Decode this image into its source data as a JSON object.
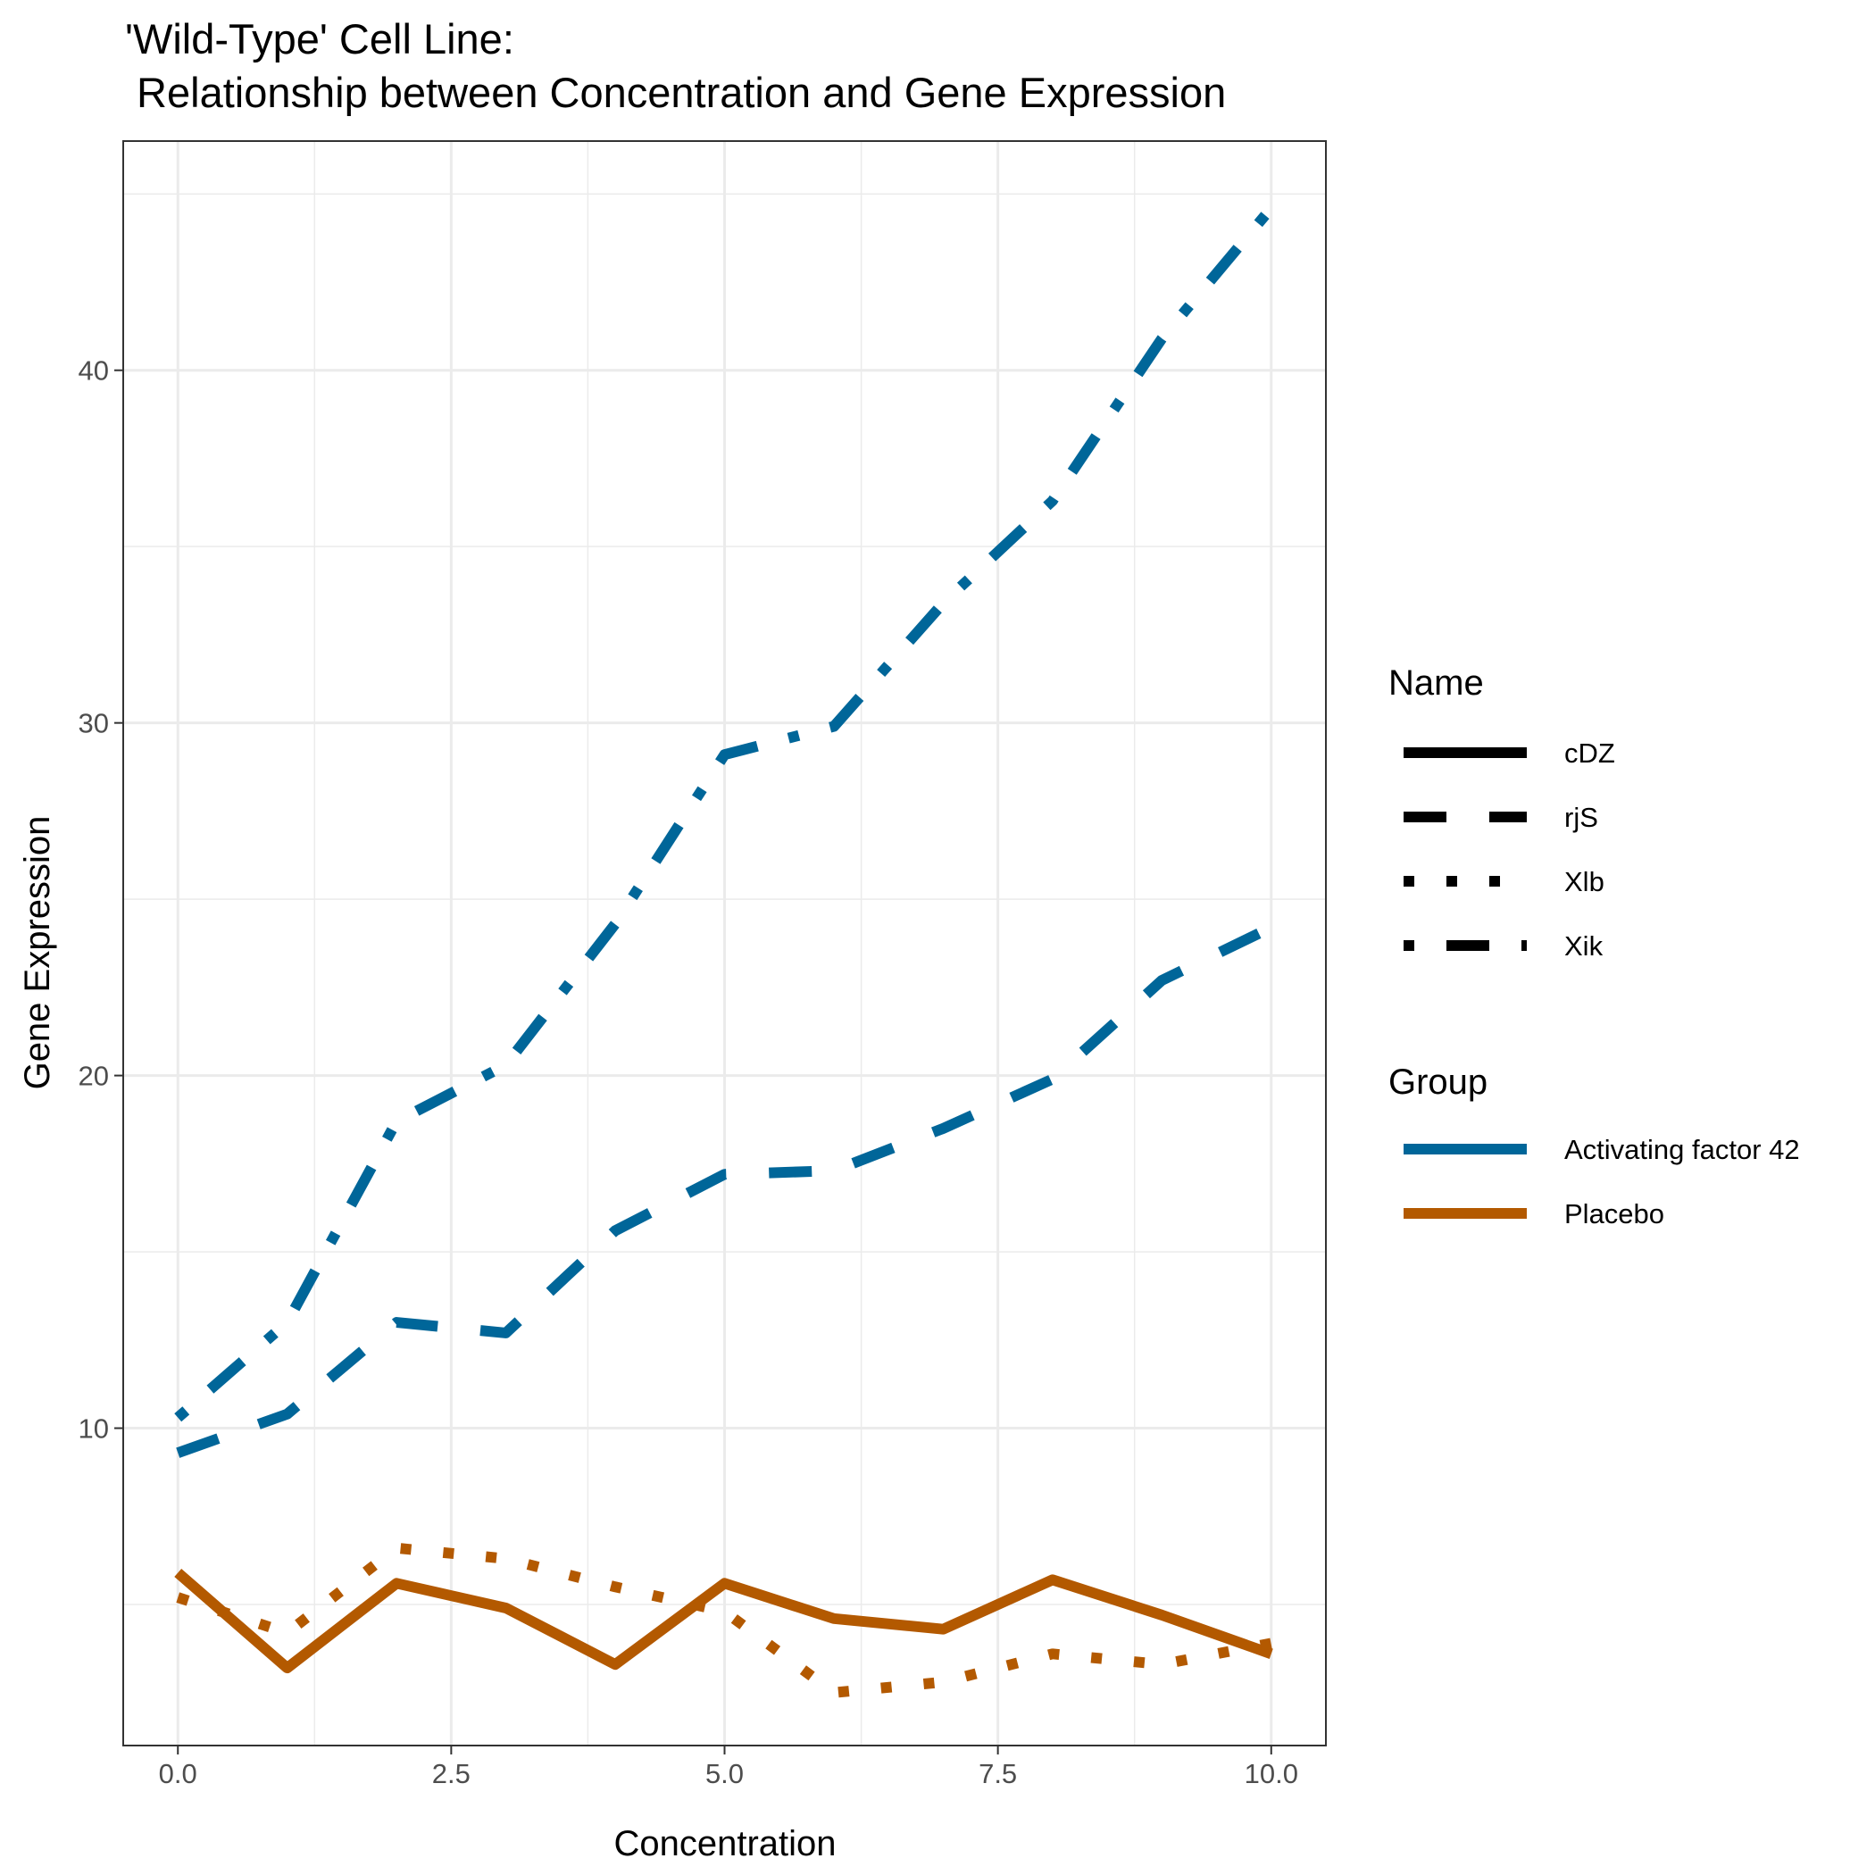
{
  "chart_data": {
    "type": "line",
    "title_line1": "'Wild-Type' Cell Line:",
    "title_line2": " Relationship between Concentration and Gene Expression",
    "xlabel": "Concentration",
    "ylabel": "Gene Expression",
    "xlim": [
      -0.5,
      10.5
    ],
    "ylim": [
      1.0,
      46.5
    ],
    "x_ticks": [
      "0.0",
      "2.5",
      "5.0",
      "7.5",
      "10.0"
    ],
    "y_ticks": [
      "10",
      "20",
      "30",
      "40"
    ],
    "x": [
      0,
      1,
      2,
      3,
      4,
      5,
      6,
      7,
      8,
      9,
      10
    ],
    "grid": true,
    "legend_position": "right",
    "legend": {
      "name_title": "Name",
      "names": [
        {
          "label": "cDZ",
          "linetype": "solid"
        },
        {
          "label": "rjS",
          "linetype": "dashed"
        },
        {
          "label": "Xlb",
          "linetype": "dotted"
        },
        {
          "label": "Xik",
          "linetype": "dotdash"
        }
      ],
      "group_title": "Group",
      "groups": [
        {
          "label": "Activating factor 42",
          "color": "#006699"
        },
        {
          "label": "Placebo",
          "color": "#b35900"
        }
      ]
    },
    "series": [
      {
        "name": "Xik",
        "group": "Activating factor 42",
        "linetype": "dotdash",
        "color": "#006699",
        "values": [
          10.3,
          13.0,
          18.7,
          20.3,
          24.3,
          29.1,
          29.9,
          33.4,
          36.3,
          40.9,
          44.6
        ]
      },
      {
        "name": "rjS",
        "group": "Activating factor 42",
        "linetype": "dashed",
        "color": "#006699",
        "values": [
          9.3,
          10.4,
          13.0,
          12.7,
          15.6,
          17.2,
          17.3,
          18.5,
          19.9,
          22.7,
          24.2
        ]
      },
      {
        "name": "cDZ",
        "group": "Placebo",
        "linetype": "solid",
        "color": "#b35900",
        "values": [
          5.9,
          3.2,
          5.6,
          4.9,
          3.3,
          5.6,
          4.6,
          4.3,
          5.7,
          4.7,
          3.6
        ]
      },
      {
        "name": "Xlb",
        "group": "Placebo",
        "linetype": "dotted",
        "color": "#b35900",
        "values": [
          5.2,
          4.2,
          6.6,
          6.3,
          5.5,
          4.8,
          2.5,
          2.8,
          3.6,
          3.3,
          3.9
        ]
      }
    ]
  }
}
